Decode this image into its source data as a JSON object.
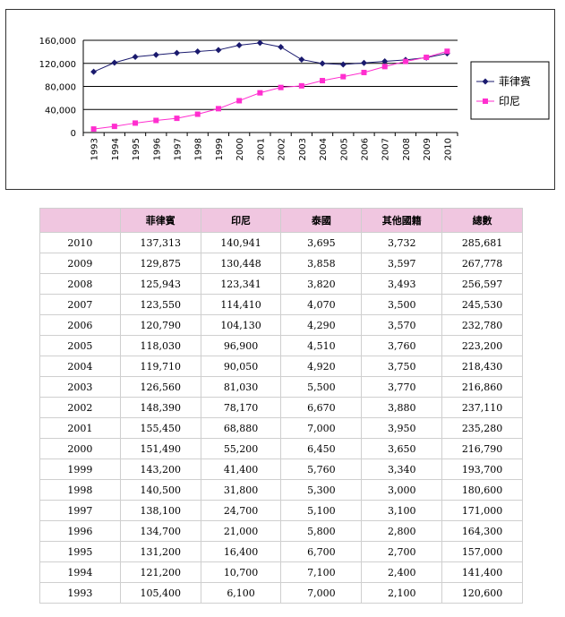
{
  "colors": {
    "series1": "#1a1a6e",
    "series2": "#ff2ecf",
    "header_bg": "#f0c6e0"
  },
  "chart_data": {
    "type": "line",
    "x": [
      "1993",
      "1994",
      "1995",
      "1996",
      "1997",
      "1998",
      "1999",
      "2000",
      "2001",
      "2002",
      "2003",
      "2004",
      "2005",
      "2006",
      "2007",
      "2008",
      "2009",
      "2010"
    ],
    "ylim": [
      0,
      160000
    ],
    "yticks": [
      "0",
      "40,000",
      "80,000",
      "120,000",
      "160,000"
    ],
    "ytick_values": [
      0,
      40000,
      80000,
      120000,
      160000
    ],
    "grid": true,
    "legend_position": "right",
    "series": [
      {
        "name": "菲律賓",
        "color": "#1a1a6e",
        "marker": "diamond",
        "values": [
          105400,
          121200,
          131200,
          134700,
          138100,
          140500,
          143200,
          151490,
          155450,
          148390,
          126560,
          119710,
          118030,
          120790,
          123550,
          125943,
          129875,
          137313
        ]
      },
      {
        "name": "印尼",
        "color": "#ff2ecf",
        "marker": "square",
        "values": [
          6100,
          10700,
          16400,
          21000,
          24700,
          31800,
          41400,
          55200,
          68880,
          78170,
          81030,
          90050,
          96900,
          104130,
          114410,
          123341,
          130448,
          140941
        ]
      }
    ]
  },
  "table": {
    "headers": [
      "",
      "菲律賓",
      "印尼",
      "泰國",
      "其他國籍",
      "總數"
    ],
    "rows": [
      [
        "2010",
        "137,313",
        "140,941",
        "3,695",
        "3,732",
        "285,681"
      ],
      [
        "2009",
        "129,875",
        "130,448",
        "3,858",
        "3,597",
        "267,778"
      ],
      [
        "2008",
        "125,943",
        "123,341",
        "3,820",
        "3,493",
        "256,597"
      ],
      [
        "2007",
        "123,550",
        "114,410",
        "4,070",
        "3,500",
        "245,530"
      ],
      [
        "2006",
        "120,790",
        "104,130",
        "4,290",
        "3,570",
        "232,780"
      ],
      [
        "2005",
        "118,030",
        "96,900",
        "4,510",
        "3,760",
        "223,200"
      ],
      [
        "2004",
        "119,710",
        "90,050",
        "4,920",
        "3,750",
        "218,430"
      ],
      [
        "2003",
        "126,560",
        "81,030",
        "5,500",
        "3,770",
        "216,860"
      ],
      [
        "2002",
        "148,390",
        "78,170",
        "6,670",
        "3,880",
        "237,110"
      ],
      [
        "2001",
        "155,450",
        "68,880",
        "7,000",
        "3,950",
        "235,280"
      ],
      [
        "2000",
        "151,490",
        "55,200",
        "6,450",
        "3,650",
        "216,790"
      ],
      [
        "1999",
        "143,200",
        "41,400",
        "5,760",
        "3,340",
        "193,700"
      ],
      [
        "1998",
        "140,500",
        "31,800",
        "5,300",
        "3,000",
        "180,600"
      ],
      [
        "1997",
        "138,100",
        "24,700",
        "5,100",
        "3,100",
        "171,000"
      ],
      [
        "1996",
        "134,700",
        "21,000",
        "5,800",
        "2,800",
        "164,300"
      ],
      [
        "1995",
        "131,200",
        "16,400",
        "6,700",
        "2,700",
        "157,000"
      ],
      [
        "1994",
        "121,200",
        "10,700",
        "7,100",
        "2,400",
        "141,400"
      ],
      [
        "1993",
        "105,400",
        "6,100",
        "7,000",
        "2,100",
        "120,600"
      ]
    ]
  }
}
